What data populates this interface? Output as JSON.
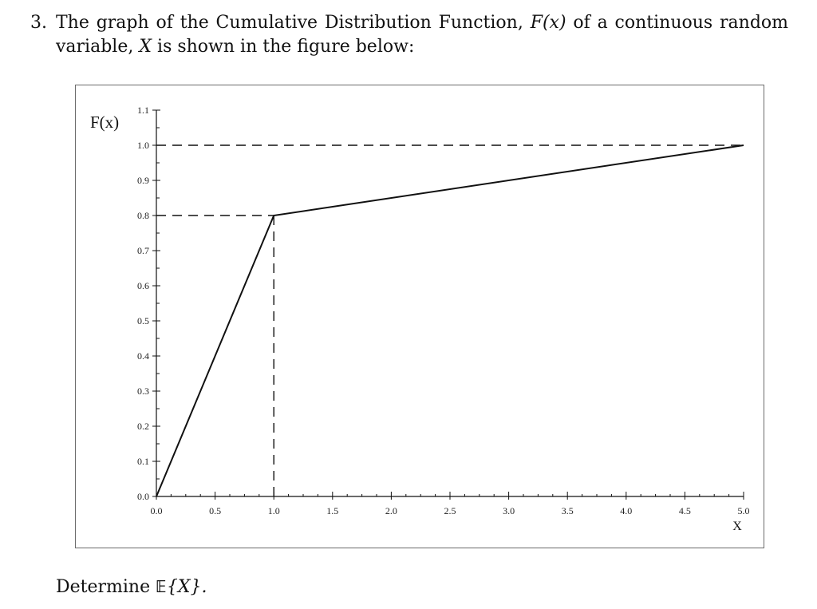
{
  "problem": {
    "number": "3.",
    "line1_before": "The graph of the Cumulative Distribution Function,",
    "line1_math": "F(x)",
    "line1_after": "of a continuous random",
    "line2_before": "variable,",
    "line2_math": "X",
    "line2_after": "is shown in the figure below:"
  },
  "question": {
    "prefix": "Determine",
    "operator": "𝔼",
    "argument": "{X}."
  },
  "chart_data": {
    "type": "line",
    "ylabel": "F(x)",
    "xlabel": "X",
    "xlim": [
      0.0,
      5.0
    ],
    "ylim": [
      0.0,
      1.1
    ],
    "x_ticks": [
      "0.0",
      "0.5",
      "1.0",
      "1.5",
      "2.0",
      "2.5",
      "3.0",
      "3.5",
      "4.0",
      "4.5",
      "5.0"
    ],
    "y_ticks": [
      "0.0",
      "0.1",
      "0.2",
      "0.3",
      "0.4",
      "0.5",
      "0.6",
      "0.7",
      "0.8",
      "0.9",
      "1.0",
      "1.1"
    ],
    "series": [
      {
        "x": [
          0.0,
          1.0,
          5.0
        ],
        "y": [
          0.0,
          0.8,
          1.0
        ]
      }
    ],
    "guides": [
      {
        "orientation": "horizontal",
        "value": 1.0,
        "from": 0.0,
        "to": 5.0
      },
      {
        "orientation": "horizontal",
        "value": 0.8,
        "from": 0.0,
        "to": 1.0
      },
      {
        "orientation": "vertical",
        "value": 1.0,
        "from": 0.0,
        "to": 0.8
      }
    ],
    "grid": false
  }
}
